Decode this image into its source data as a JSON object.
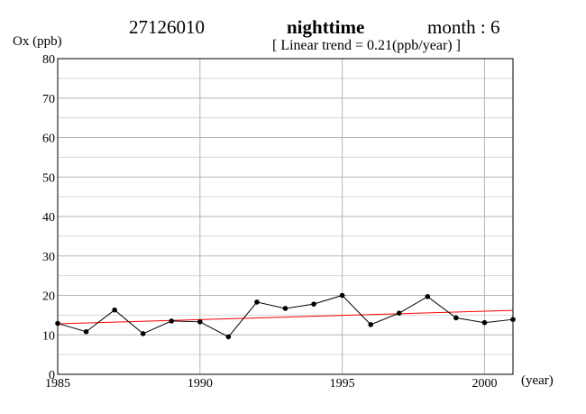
{
  "header": {
    "station": "27126010",
    "time_of_day": "nighttime",
    "month_label": "month : 6",
    "trend_label": "[ Linear trend = 0.21(ppb/year) ]"
  },
  "chart_data": {
    "type": "line",
    "ylabel": "Ox (ppb)",
    "xlabel": "(year)",
    "xlim": [
      1985,
      2001
    ],
    "ylim": [
      0,
      80
    ],
    "x_ticks": [
      1985,
      1990,
      1995,
      2000
    ],
    "y_ticks": [
      0,
      10,
      20,
      30,
      40,
      50,
      60,
      70,
      80
    ],
    "grid": true,
    "series": [
      {
        "x": [
          1985,
          1986,
          1987,
          1988,
          1989,
          1990,
          1991,
          1992,
          1993,
          1994,
          1995,
          1996,
          1997,
          1998,
          1999,
          2000,
          2001
        ],
        "values": [
          12.9,
          10.8,
          16.3,
          10.3,
          13.5,
          13.3,
          9.5,
          18.3,
          16.7,
          17.8,
          20.0,
          12.6,
          15.5,
          19.7,
          14.3,
          13.1,
          13.9
        ],
        "color": "#000000"
      }
    ],
    "trend_line": {
      "x": [
        1985,
        2001
      ],
      "values": [
        12.8,
        16.2
      ],
      "color": "#ff0000"
    }
  }
}
